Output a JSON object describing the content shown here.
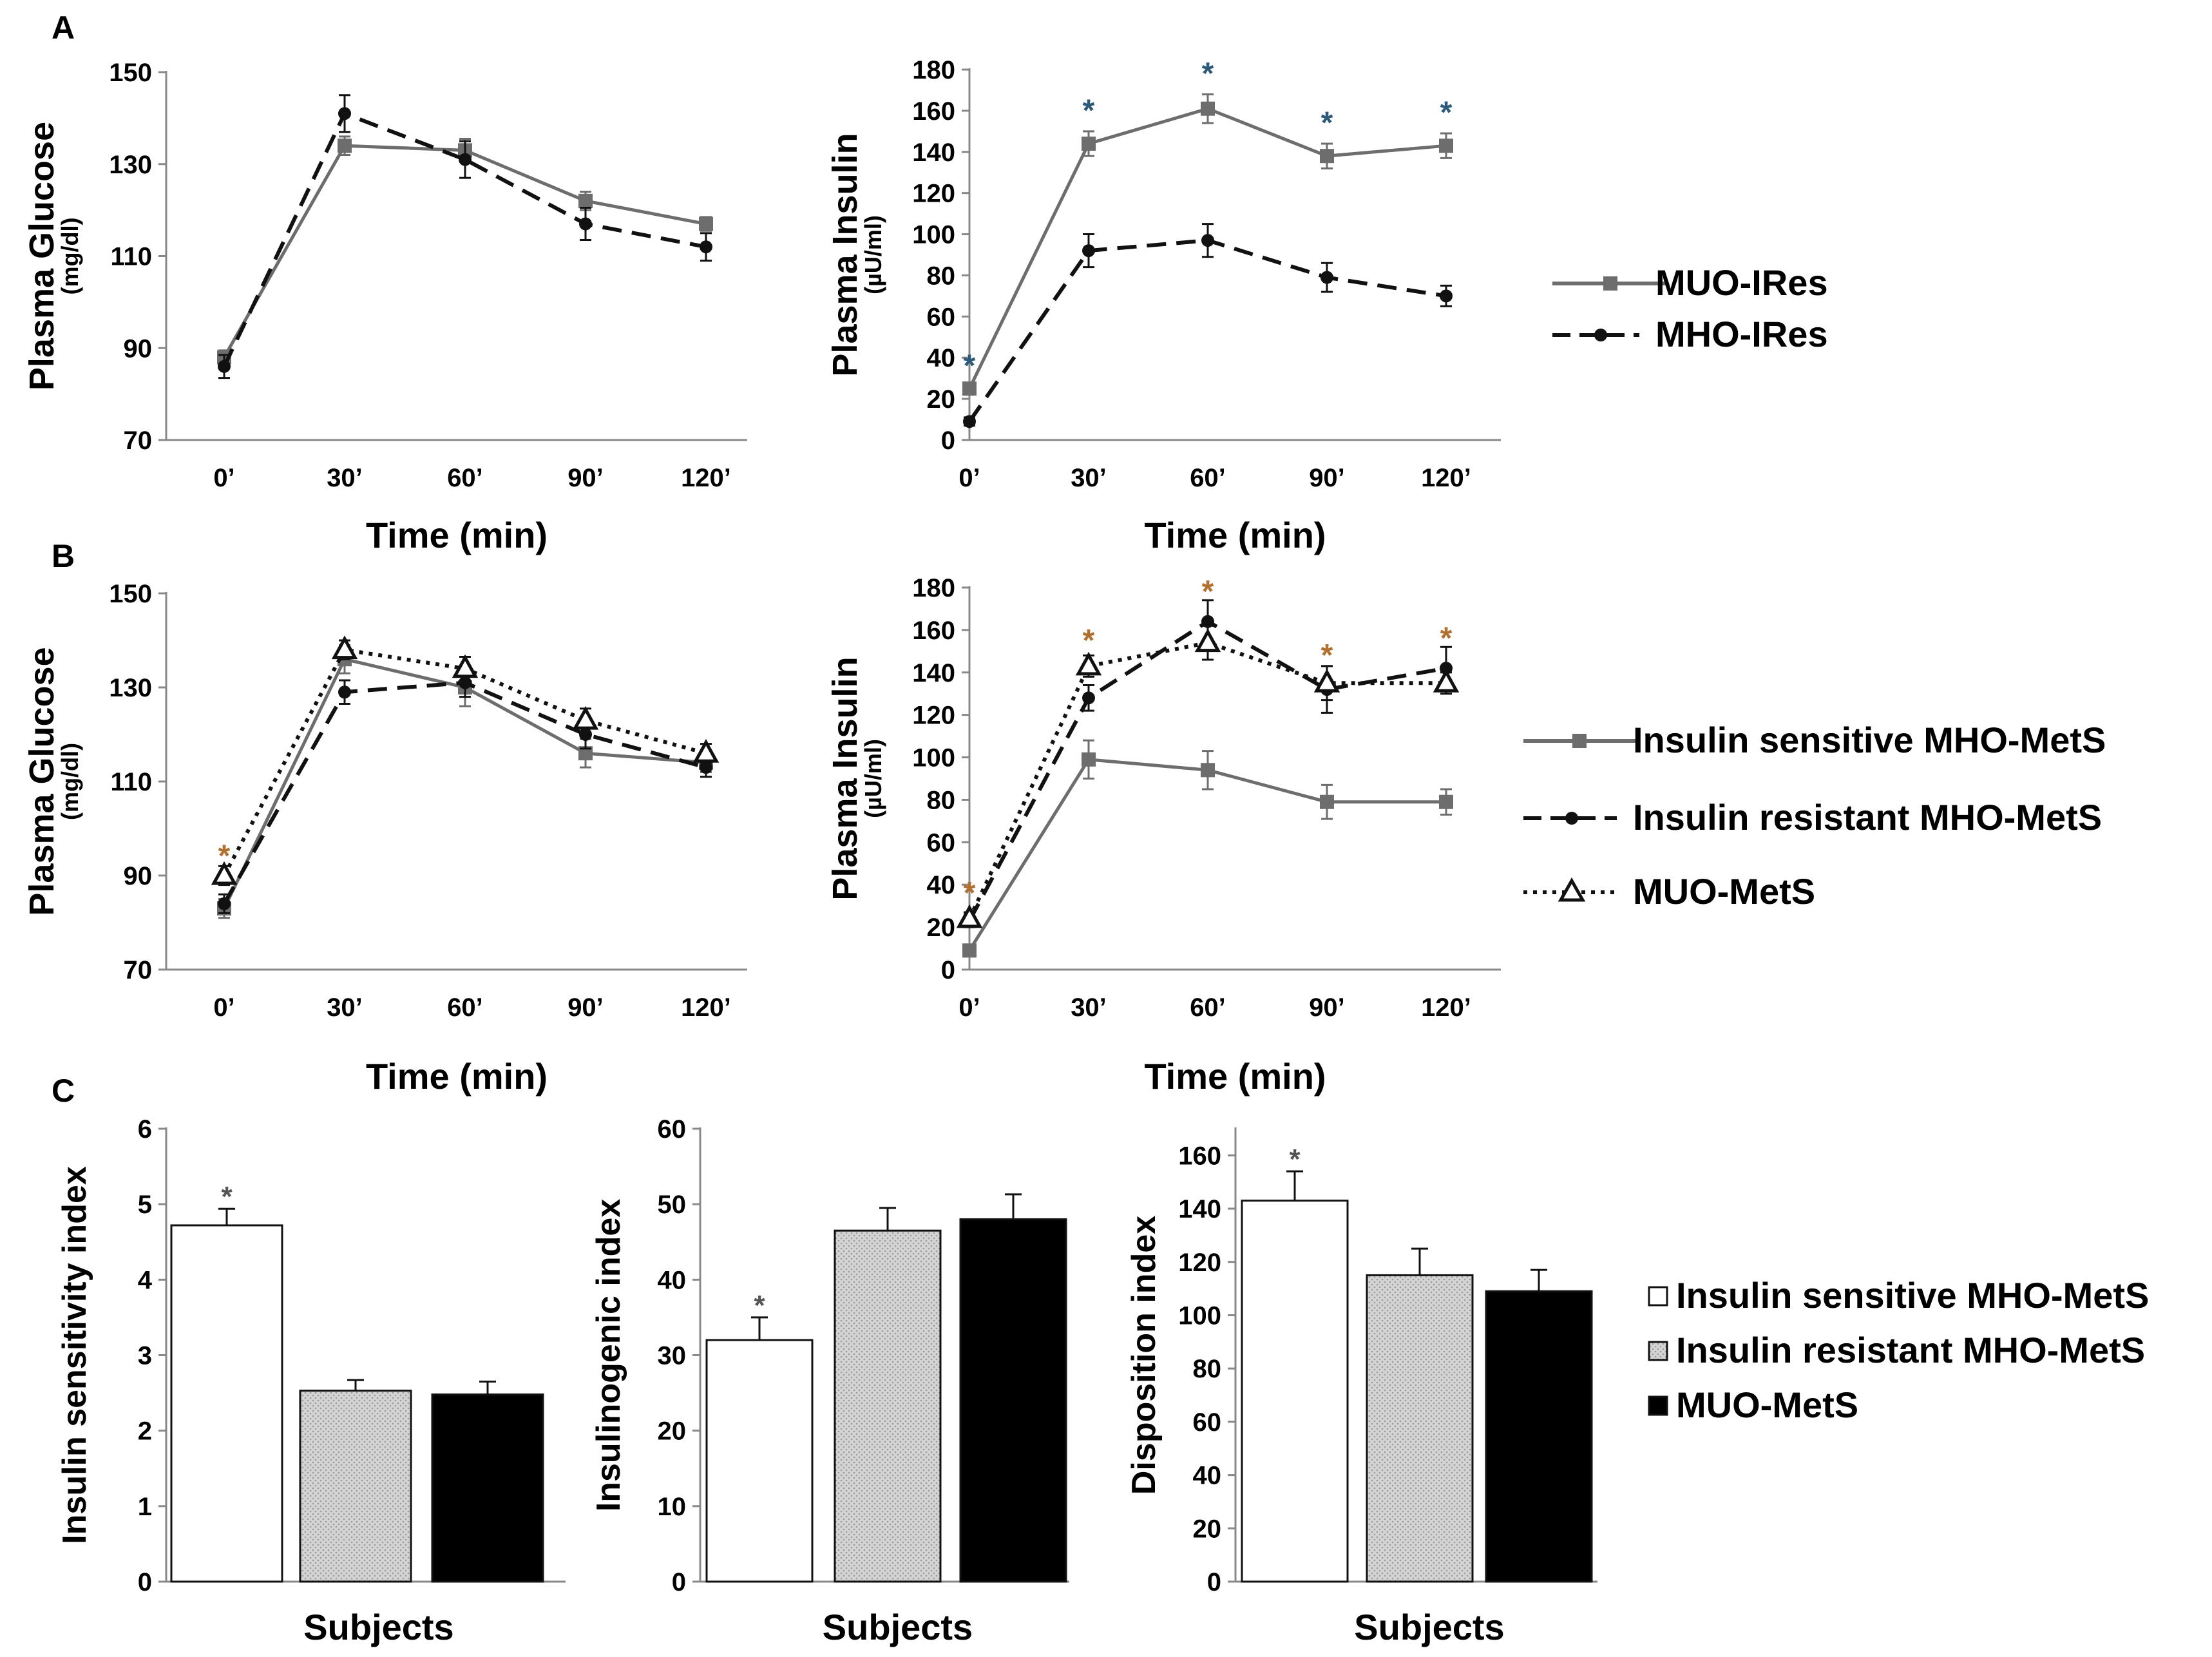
{
  "colors": {
    "gray": "#6d6d6d",
    "black": "#111111",
    "axis": "#888888",
    "star": "#2e5a7a",
    "star_orange": "#b07030",
    "white_bar": "#ffffff",
    "dotted_bar": "#d9d9d9"
  },
  "panel_labels": {
    "a": "A",
    "b": "B",
    "c": "C"
  },
  "legend_a": [
    "MUO-IRes",
    "MHO-IRes"
  ],
  "legend_b": [
    "Insulin sensitive MHO-MetS",
    "Insulin resistant MHO-MetS",
    "MUO-MetS"
  ],
  "legend_c": [
    "Insulin sensitive MHO-MetS",
    "Insulin resistant MHO-MetS",
    "MUO-MetS"
  ],
  "chart_data": [
    {
      "id": "a_glucose",
      "type": "line",
      "title": "",
      "ylabel": "Plasma Glucose",
      "ylabel_unit": "(mg/dl)",
      "xlabel": "Time (min)",
      "categories": [
        "0’",
        "30’",
        "60’",
        "90’",
        "120’"
      ],
      "ylim": [
        70,
        150
      ],
      "yticks": [
        70,
        90,
        110,
        130,
        150
      ],
      "series": [
        {
          "name": "MUO-IRes",
          "style": "solid",
          "marker": "square",
          "color": "gray",
          "values": [
            88,
            134,
            133,
            122,
            117
          ],
          "err": [
            1.5,
            2,
            2.5,
            2,
            1.5
          ]
        },
        {
          "name": "MHO-IRes",
          "style": "dashed",
          "marker": "dot",
          "color": "black",
          "values": [
            86,
            141,
            131,
            117,
            112
          ],
          "err": [
            2.5,
            4,
            4,
            3.5,
            3
          ]
        }
      ],
      "stars": []
    },
    {
      "id": "a_insulin",
      "type": "line",
      "title": "",
      "ylabel": "Plasma Insulin",
      "ylabel_unit": "(µU/ml)",
      "xlabel": "Time (min)",
      "categories": [
        "0’",
        "30’",
        "60’",
        "90’",
        "120’"
      ],
      "ylim": [
        0,
        180
      ],
      "yticks": [
        0,
        20,
        40,
        60,
        80,
        100,
        120,
        140,
        160,
        180
      ],
      "series": [
        {
          "name": "MUO-IRes",
          "style": "solid",
          "marker": "square",
          "color": "gray",
          "values": [
            25,
            144,
            161,
            138,
            143
          ],
          "err": [
            2,
            6,
            7,
            6,
            6
          ]
        },
        {
          "name": "MHO-IRes",
          "style": "dashed",
          "marker": "dot",
          "color": "black",
          "values": [
            9,
            92,
            97,
            79,
            70
          ],
          "err": [
            2,
            8,
            8,
            7,
            5
          ]
        }
      ],
      "stars": [
        {
          "index": 0,
          "value": 38,
          "text": "*"
        },
        {
          "index": 1,
          "value": 162,
          "text": "*"
        },
        {
          "index": 2,
          "value": 180,
          "text": "*"
        },
        {
          "index": 3,
          "value": 156,
          "text": "*"
        },
        {
          "index": 4,
          "value": 161,
          "text": "*"
        }
      ]
    },
    {
      "id": "b_glucose",
      "type": "line",
      "title": "",
      "ylabel": "Plasma Glucose",
      "ylabel_unit": "(mg/dl)",
      "xlabel": "Time (min)",
      "categories": [
        "0’",
        "30’",
        "60’",
        "90’",
        "120’"
      ],
      "ylim": [
        70,
        150
      ],
      "yticks": [
        70,
        90,
        110,
        130,
        150
      ],
      "series": [
        {
          "name": "Insulin sensitive MHO-MetS",
          "style": "solid",
          "marker": "square",
          "color": "gray",
          "values": [
            83,
            136,
            130,
            116,
            114
          ],
          "err": [
            2,
            3,
            4,
            3,
            2
          ]
        },
        {
          "name": "Insulin resistant MHO-MetS",
          "style": "dashed",
          "marker": "dot",
          "color": "black",
          "values": [
            84,
            129,
            131,
            120,
            113
          ],
          "err": [
            2,
            2.5,
            3,
            3,
            2
          ]
        },
        {
          "name": "MUO-MetS",
          "style": "dotted",
          "marker": "triangle",
          "color": "black",
          "values": [
            90,
            138,
            134,
            123,
            116
          ],
          "err": [
            2,
            2,
            2.5,
            2.5,
            2
          ]
        }
      ],
      "stars": [
        {
          "index": 0,
          "value": 95,
          "text": "*"
        }
      ]
    },
    {
      "id": "b_insulin",
      "type": "line",
      "title": "",
      "ylabel": "Plasma Insulin",
      "ylabel_unit": "(µU/ml)",
      "xlabel": "Time (min)",
      "categories": [
        "0’",
        "30’",
        "60’",
        "90’",
        "120’"
      ],
      "ylim": [
        0,
        180
      ],
      "yticks": [
        0,
        20,
        40,
        60,
        80,
        100,
        120,
        140,
        160,
        180
      ],
      "series": [
        {
          "name": "Insulin sensitive MHO-MetS",
          "style": "solid",
          "marker": "square",
          "color": "gray",
          "values": [
            9,
            99,
            94,
            79,
            79
          ],
          "err": [
            2,
            9,
            9,
            8,
            6
          ]
        },
        {
          "name": "Insulin resistant MHO-MetS",
          "style": "dashed",
          "marker": "dot",
          "color": "black",
          "values": [
            23,
            128,
            164,
            132,
            142
          ],
          "err": [
            3,
            6,
            10,
            11,
            10
          ]
        },
        {
          "name": "MUO-MetS",
          "style": "dotted",
          "marker": "triangle",
          "color": "black",
          "values": [
            24,
            143,
            154,
            135,
            135
          ],
          "err": [
            3,
            5,
            8,
            8,
            5
          ]
        }
      ],
      "stars": [
        {
          "index": 0,
          "value": 38,
          "text": "*"
        },
        {
          "index": 1,
          "value": 157,
          "text": "*"
        },
        {
          "index": 2,
          "value": 180,
          "text": "*"
        },
        {
          "index": 3,
          "value": 150,
          "text": "*"
        },
        {
          "index": 4,
          "value": 158,
          "text": "*"
        }
      ]
    },
    {
      "id": "c_sensitivity",
      "type": "bar",
      "title": "",
      "ylabel": "Insulin sensitivity index",
      "xlabel": "Subjects",
      "categories": [
        "Insulin sensitive MHO-MetS",
        "Insulin resistant MHO-MetS",
        "MUO-MetS"
      ],
      "values": [
        4.72,
        2.53,
        2.48
      ],
      "err": [
        0.22,
        0.14,
        0.17
      ],
      "ylim": [
        0,
        6
      ],
      "yticks": [
        0,
        1,
        2,
        3,
        4,
        5,
        6
      ],
      "stars": [
        {
          "index": 0,
          "text": "*"
        }
      ]
    },
    {
      "id": "c_insulinogenic",
      "type": "bar",
      "title": "",
      "ylabel": "Insulinogenic index",
      "xlabel": "Subjects",
      "categories": [
        "Insulin sensitive MHO-MetS",
        "Insulin resistant MHO-MetS",
        "MUO-MetS"
      ],
      "values": [
        32,
        46.5,
        48
      ],
      "err": [
        3,
        3,
        3.3
      ],
      "ylim": [
        0,
        60
      ],
      "yticks": [
        0,
        10,
        20,
        30,
        40,
        50,
        60
      ],
      "stars": [
        {
          "index": 0,
          "text": "*"
        }
      ]
    },
    {
      "id": "c_disposition",
      "type": "bar",
      "title": "",
      "ylabel": "Disposition index",
      "xlabel": "Subjects",
      "categories": [
        "Insulin sensitive MHO-MetS",
        "Insulin resistant MHO-MetS",
        "MUO-MetS"
      ],
      "values": [
        143,
        115,
        109
      ],
      "err": [
        11,
        10,
        8
      ],
      "ylim": [
        0,
        170
      ],
      "yticks": [
        0,
        20,
        40,
        60,
        80,
        100,
        120,
        140,
        160
      ],
      "stars": [
        {
          "index": 0,
          "text": "*"
        }
      ]
    }
  ]
}
